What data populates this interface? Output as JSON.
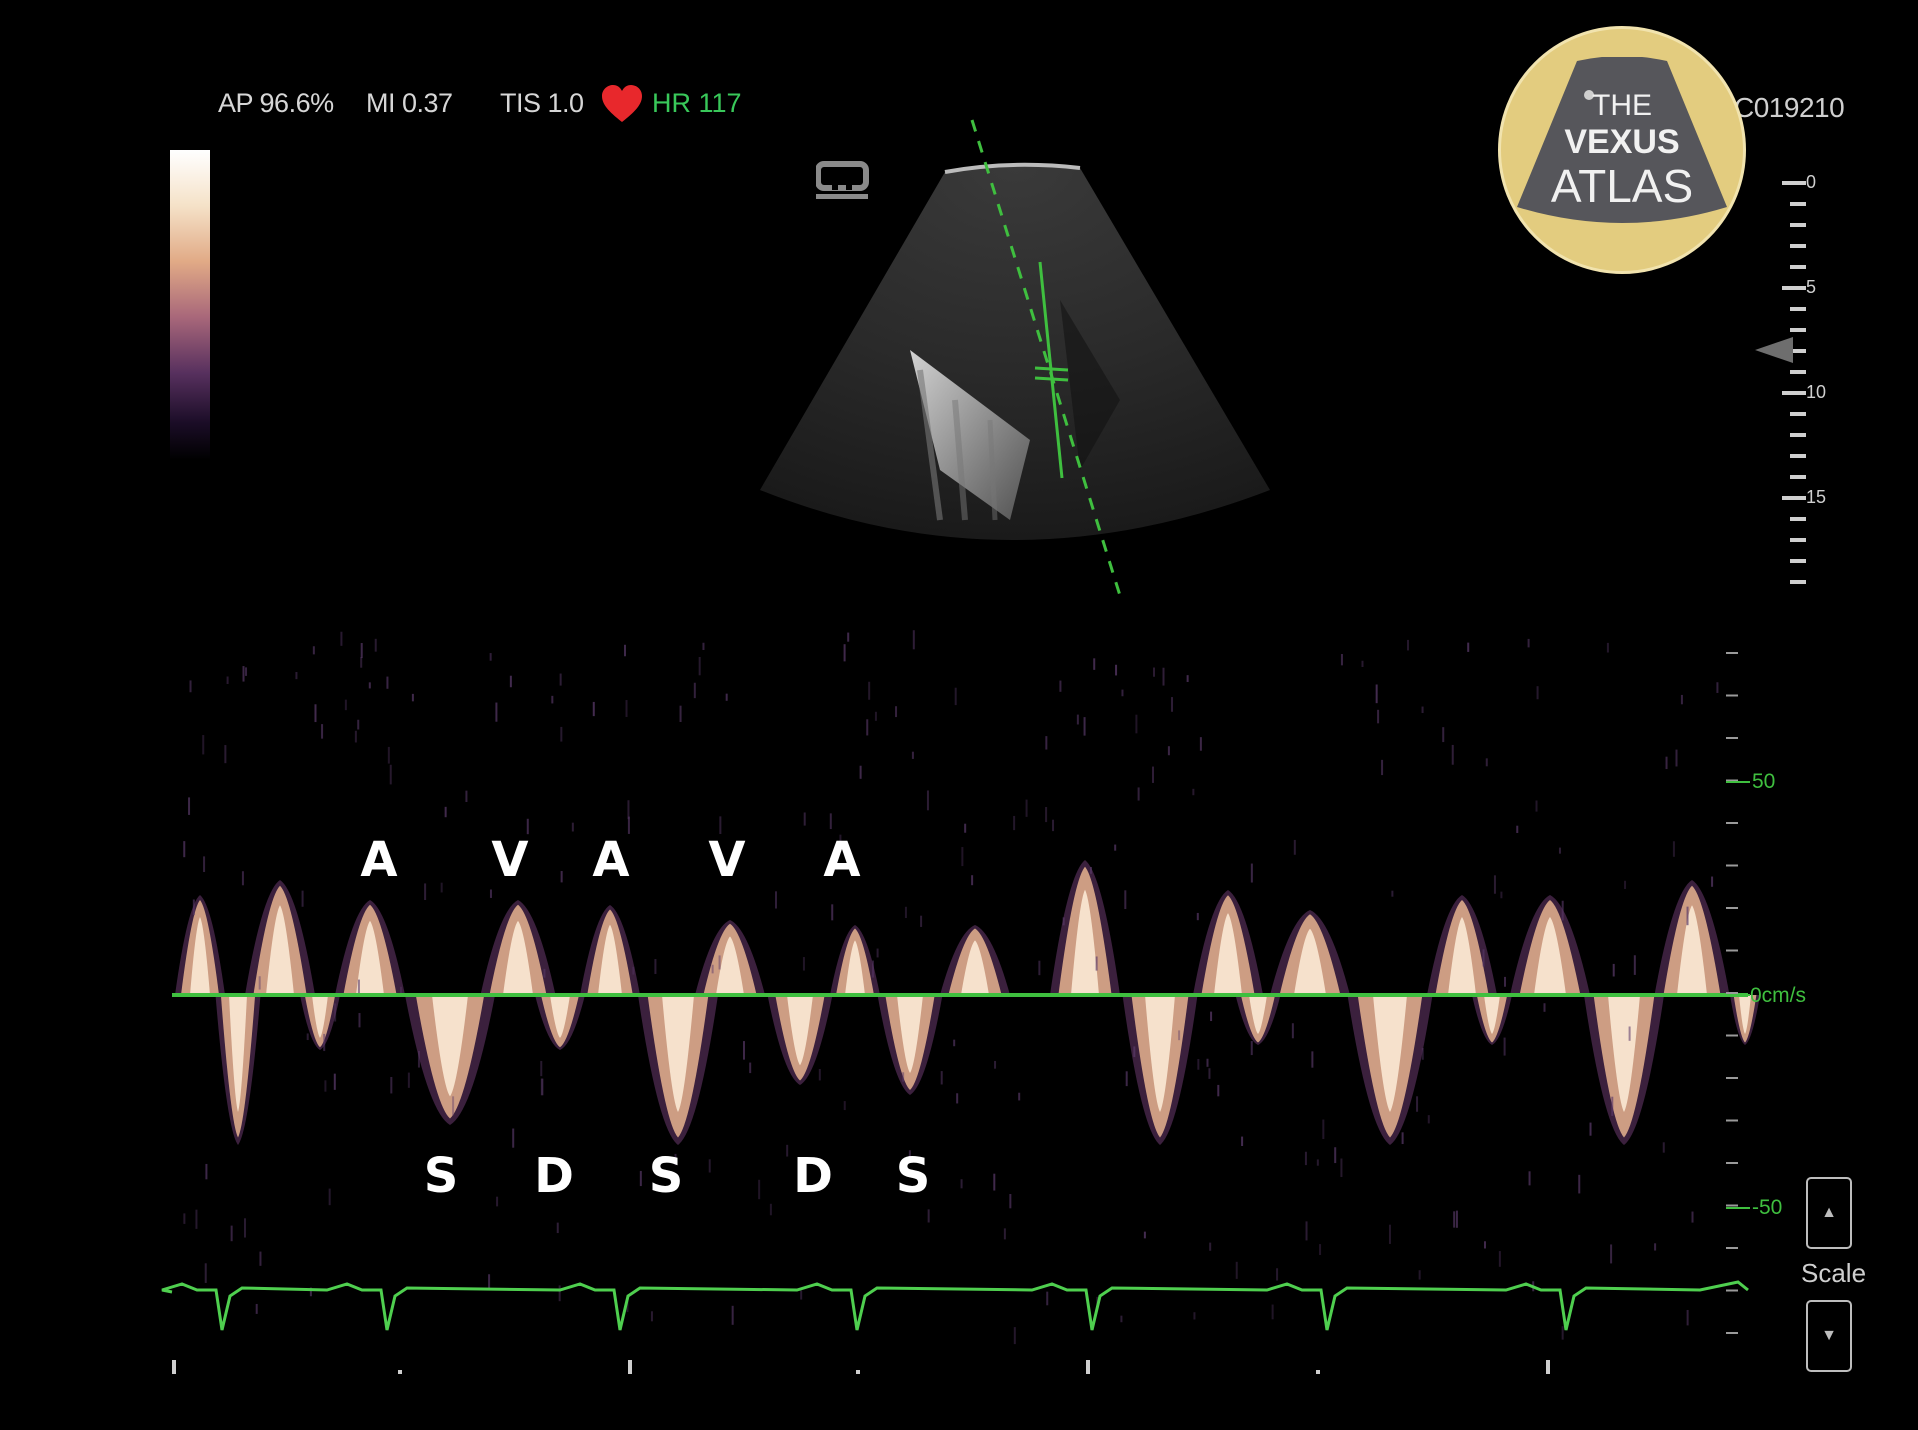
{
  "status_bar": {
    "ap": "AP 96.6%",
    "mi": "MI 0.37",
    "tis": "TIS 1.0",
    "heart_icon": "heart-icon",
    "hr": "HR 117"
  },
  "study_id": "C019210",
  "logo": {
    "line1": "THE",
    "line2": "VEXUS",
    "line3": "ATLAS"
  },
  "depth_scale": {
    "labels": [
      "0",
      "5",
      "10",
      "15"
    ]
  },
  "doppler": {
    "velocity_labels": [
      "50",
      "0cm/s",
      "-50"
    ],
    "waves_above": [
      "A",
      "V",
      "A",
      "V",
      "A"
    ],
    "waves_below": [
      "S",
      "D",
      "S",
      "D",
      "S"
    ]
  },
  "scale_control": {
    "label": "Scale",
    "up_icon": "up-arrow-icon",
    "down_icon": "down-arrow-icon",
    "up_glyph": "▲",
    "down_glyph": "▼"
  },
  "colors": {
    "baseline": "#3fbf3f",
    "ecg": "#4fcf4f",
    "heart": "#e8282c"
  }
}
